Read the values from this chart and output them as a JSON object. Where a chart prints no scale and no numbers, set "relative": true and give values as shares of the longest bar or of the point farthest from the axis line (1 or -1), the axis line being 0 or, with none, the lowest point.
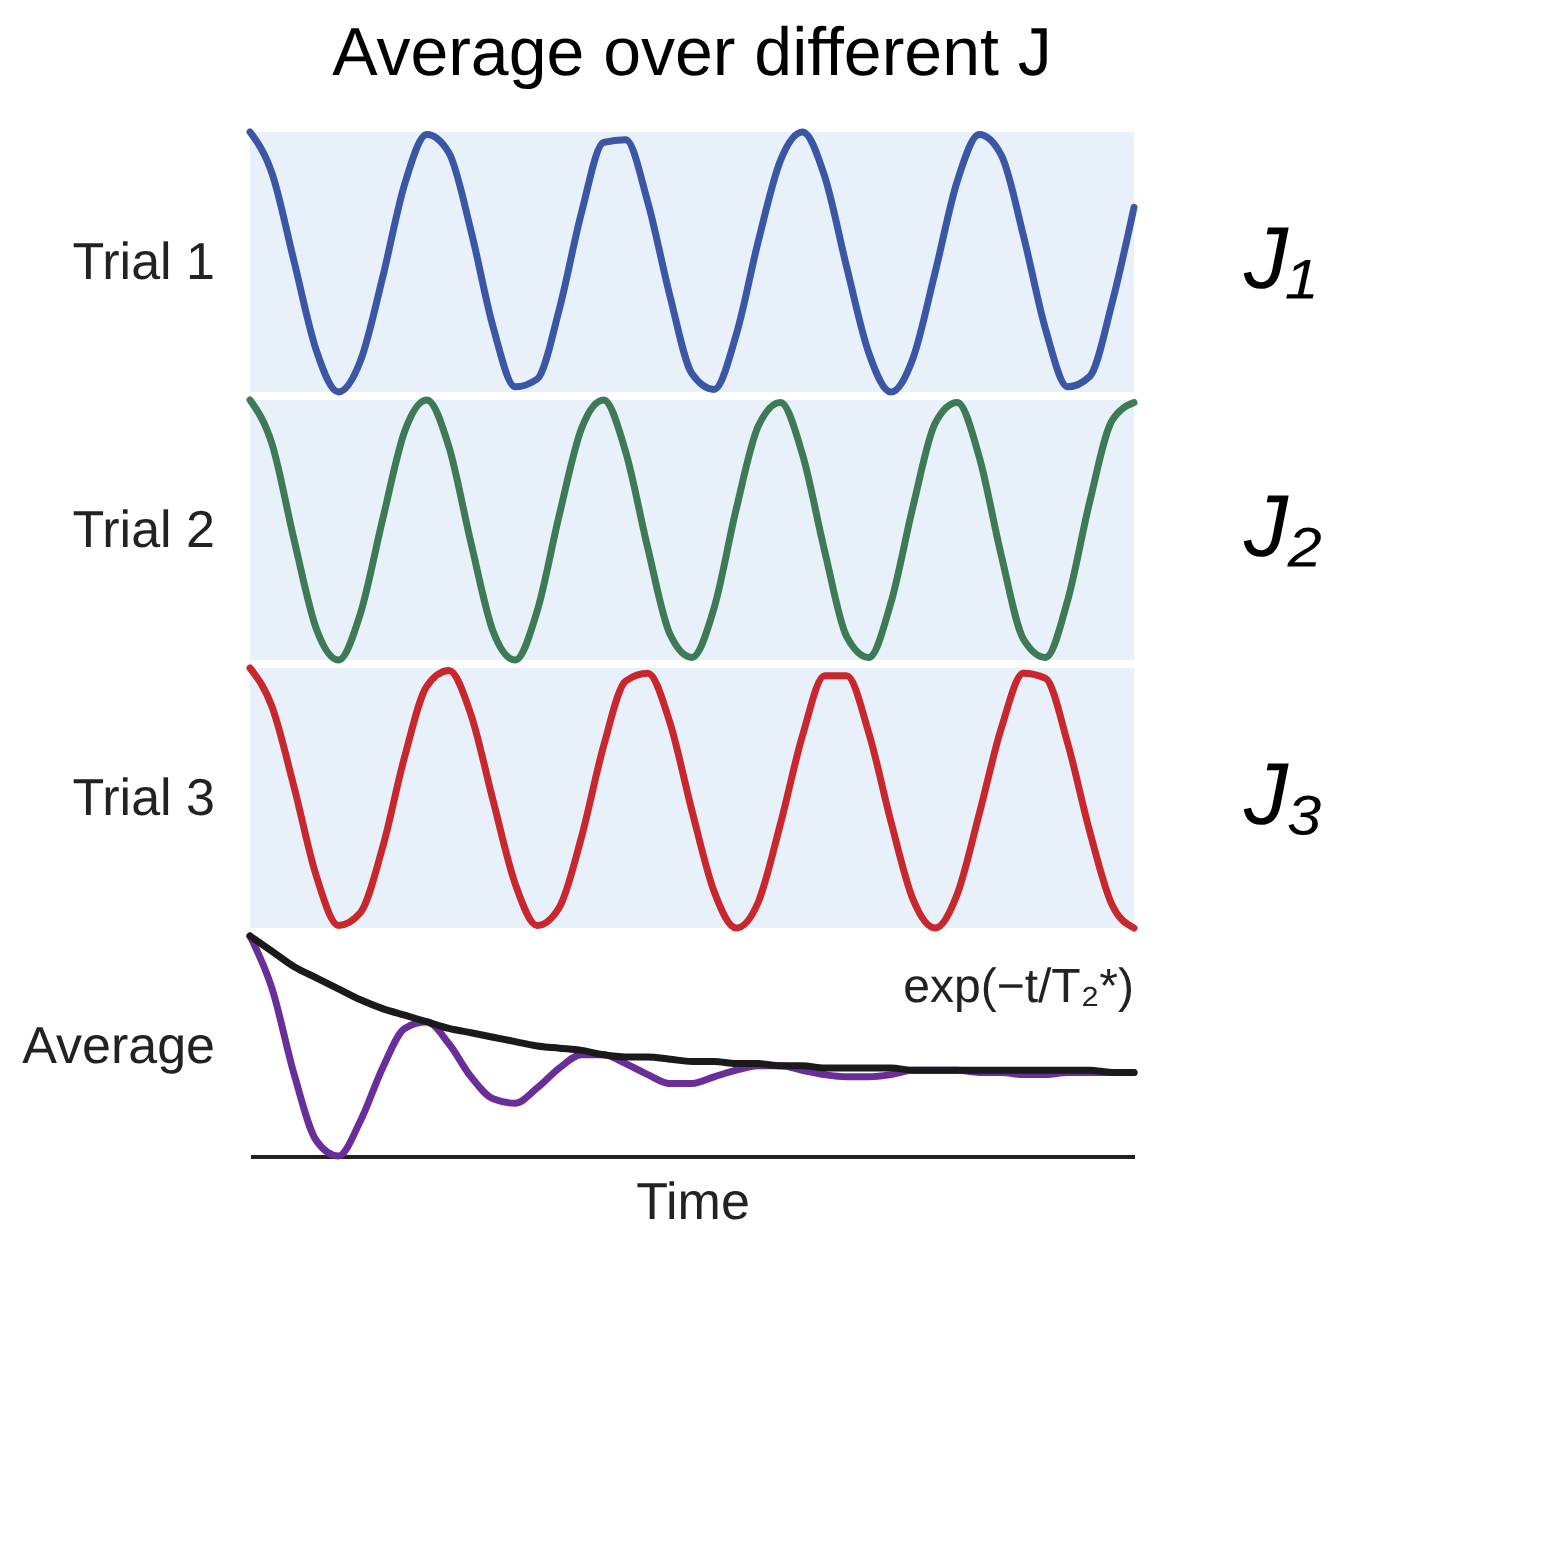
{
  "chart_data": [
    {
      "type": "line",
      "title": "Average over different J",
      "ylabel": "Trial 1",
      "annotations": [
        "J₁"
      ],
      "relative": true,
      "legend": false,
      "categories": [
        null,
        null,
        null,
        null,
        null,
        null,
        null,
        null,
        null,
        null,
        null,
        null,
        null,
        null,
        null,
        null,
        null,
        null,
        null,
        null,
        null,
        null,
        null,
        null,
        null,
        null,
        null,
        null,
        null,
        null,
        null,
        null,
        null,
        null,
        null,
        null,
        null,
        null,
        null,
        null,
        null
      ],
      "series": [
        {
          "color": "#3a56a5",
          "values": [
            1.0,
            0.84,
            0.5,
            0.16,
            0.0,
            0.12,
            0.44,
            0.8,
            0.99,
            0.92,
            0.62,
            0.25,
            0.02,
            0.05,
            0.32,
            0.69,
            0.96,
            0.97,
            0.73,
            0.37,
            0.07,
            0.01,
            0.22,
            0.58,
            0.89,
            1.0,
            0.83,
            0.48,
            0.15,
            0.0,
            0.13,
            0.46,
            0.81,
            0.99,
            0.91,
            0.6,
            0.24,
            0.02,
            0.06,
            0.34,
            0.71
          ]
        }
      ]
    },
    {
      "type": "line",
      "ylabel": "Trial 2",
      "annotations": [
        "J₂"
      ],
      "relative": true,
      "legend": false,
      "categories": [
        null,
        null,
        null,
        null,
        null,
        null,
        null,
        null,
        null,
        null,
        null,
        null,
        null,
        null,
        null,
        null,
        null,
        null,
        null,
        null,
        null,
        null,
        null,
        null,
        null,
        null,
        null,
        null,
        null,
        null,
        null,
        null,
        null,
        null,
        null,
        null,
        null,
        null,
        null,
        null,
        null
      ],
      "series": [
        {
          "color": "#3f7a57",
          "values": [
            1.0,
            0.83,
            0.46,
            0.12,
            0.0,
            0.18,
            0.54,
            0.88,
            1.0,
            0.82,
            0.45,
            0.11,
            0.0,
            0.19,
            0.56,
            0.89,
            1.0,
            0.8,
            0.43,
            0.1,
            0.01,
            0.2,
            0.58,
            0.9,
            0.99,
            0.79,
            0.42,
            0.09,
            0.01,
            0.22,
            0.59,
            0.91,
            0.99,
            0.78,
            0.4,
            0.08,
            0.01,
            0.23,
            0.61,
            0.92,
            0.99
          ]
        }
      ]
    },
    {
      "type": "line",
      "ylabel": "Trial 3",
      "annotations": [
        "J₃"
      ],
      "relative": true,
      "legend": false,
      "categories": [
        null,
        null,
        null,
        null,
        null,
        null,
        null,
        null,
        null,
        null,
        null,
        null,
        null,
        null,
        null,
        null,
        null,
        null,
        null,
        null,
        null,
        null,
        null,
        null,
        null,
        null,
        null,
        null,
        null,
        null,
        null,
        null,
        null,
        null,
        null,
        null,
        null,
        null,
        null,
        null,
        null
      ],
      "series": [
        {
          "color": "#c8282d",
          "values": [
            1.0,
            0.85,
            0.54,
            0.2,
            0.01,
            0.06,
            0.31,
            0.66,
            0.93,
            0.99,
            0.82,
            0.49,
            0.17,
            0.01,
            0.08,
            0.35,
            0.7,
            0.95,
            0.98,
            0.79,
            0.45,
            0.14,
            0.0,
            0.1,
            0.4,
            0.74,
            0.97,
            0.97,
            0.75,
            0.41,
            0.11,
            0.0,
            0.13,
            0.44,
            0.77,
            0.98,
            0.96,
            0.71,
            0.37,
            0.09,
            0.0
          ]
        }
      ]
    },
    {
      "type": "line",
      "ylabel": "Average",
      "xlabel": "Time",
      "relative": true,
      "legend": false,
      "categories": [
        null,
        null,
        null,
        null,
        null,
        null,
        null,
        null,
        null,
        null,
        null,
        null,
        null,
        null,
        null,
        null,
        null,
        null,
        null,
        null,
        null,
        null,
        null,
        null,
        null,
        null,
        null,
        null,
        null,
        null,
        null,
        null,
        null,
        null,
        null,
        null,
        null,
        null,
        null,
        null,
        null
      ],
      "series": [
        {
          "color": "#6a2e9a",
          "values": [
            1.0,
            0.76,
            0.37,
            0.07,
            0.0,
            0.16,
            0.4,
            0.58,
            0.61,
            0.51,
            0.36,
            0.26,
            0.24,
            0.31,
            0.4,
            0.46,
            0.46,
            0.42,
            0.37,
            0.33,
            0.33,
            0.36,
            0.39,
            0.41,
            0.41,
            0.39,
            0.37,
            0.36,
            0.36,
            0.37,
            0.39,
            0.39,
            0.39,
            0.38,
            0.38,
            0.37,
            0.37,
            0.38,
            0.38,
            0.38,
            0.38
          ]
        },
        {
          "name": "exp(−t/T₂*)",
          "color": "#1a1a1a",
          "values": [
            1.0,
            0.93,
            0.86,
            0.81,
            0.76,
            0.71,
            0.67,
            0.64,
            0.61,
            0.58,
            0.56,
            0.54,
            0.52,
            0.5,
            0.49,
            0.48,
            0.46,
            0.45,
            0.45,
            0.44,
            0.43,
            0.43,
            0.42,
            0.42,
            0.41,
            0.41,
            0.4,
            0.4,
            0.4,
            0.4,
            0.39,
            0.39,
            0.39,
            0.39,
            0.39,
            0.39,
            0.39,
            0.39,
            0.39,
            0.38,
            0.38
          ]
        }
      ]
    }
  ]
}
